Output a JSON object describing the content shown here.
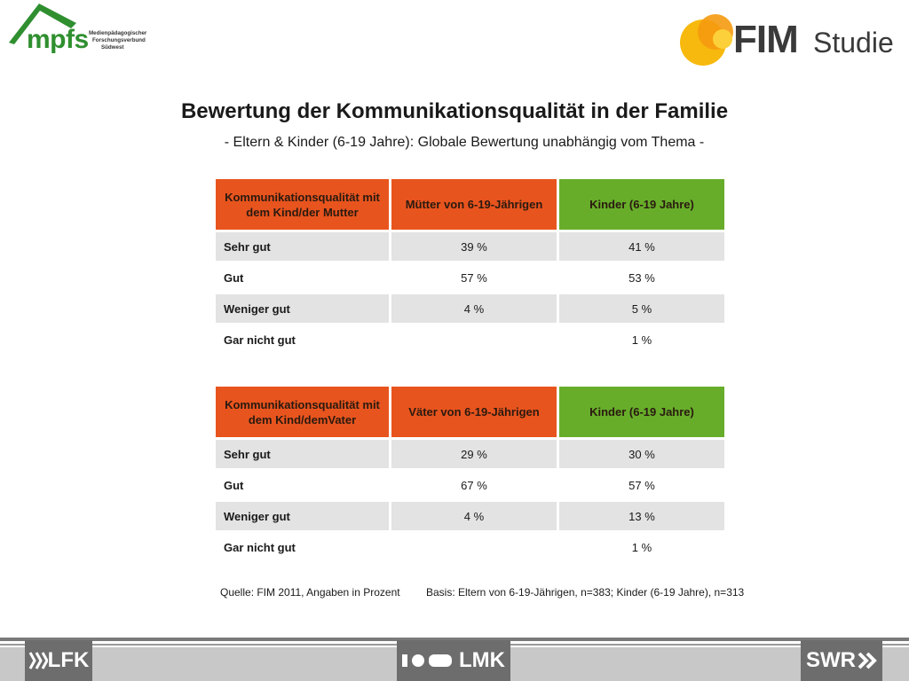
{
  "header": {
    "mpfs_logo": {
      "name": "mpfs",
      "line1": "Medienpädagogischer",
      "line2": "Forschungsverbund",
      "line3": "Südwest"
    },
    "fim_logo": {
      "name": "FIM",
      "suffix": "Studie"
    }
  },
  "title": "Bewertung der Kommunikationsqualität in der Familie",
  "subtitle": "- Eltern & Kinder (6-19 Jahre): Globale Bewertung unabhängig vom Thema -",
  "table_mothers": {
    "header": [
      "Kommunikationsqualität mit dem Kind/der Mutter",
      "Mütter von 6-19-Jährigen",
      "Kinder (6-19 Jahre)"
    ],
    "rows": [
      {
        "label": "Sehr gut",
        "parents": "39 %",
        "children": "41 %"
      },
      {
        "label": "Gut",
        "parents": "57 %",
        "children": "53 %"
      },
      {
        "label": "Weniger gut",
        "parents": "4 %",
        "children": "5 %"
      },
      {
        "label": "Gar nicht gut",
        "parents": "",
        "children": "1 %"
      }
    ]
  },
  "table_fathers": {
    "header": [
      "Kommunikationsqualität mit dem Kind/demVater",
      "Väter von 6-19-Jährigen",
      "Kinder (6-19 Jahre)"
    ],
    "rows": [
      {
        "label": "Sehr gut",
        "parents": "29 %",
        "children": "30 %"
      },
      {
        "label": "Gut",
        "parents": "67 %",
        "children": "57 %"
      },
      {
        "label": "Weniger gut",
        "parents": "4 %",
        "children": "13 %"
      },
      {
        "label": "Gar nicht gut",
        "parents": "",
        "children": "1 %"
      }
    ]
  },
  "source": "Quelle: FIM 2011, Angaben in Prozent",
  "basis": "Basis: Eltern von 6-19-Jährigen, n=383; Kinder (6-19 Jahre), n=313",
  "footer": {
    "lfk": "LFK",
    "lmk": "LMK",
    "swr": "SWR"
  },
  "colors": {
    "orange": "#e8541e",
    "green": "#67ad2a",
    "shade": "#e3e3e3",
    "footer_dark": "#6d6d6d"
  }
}
